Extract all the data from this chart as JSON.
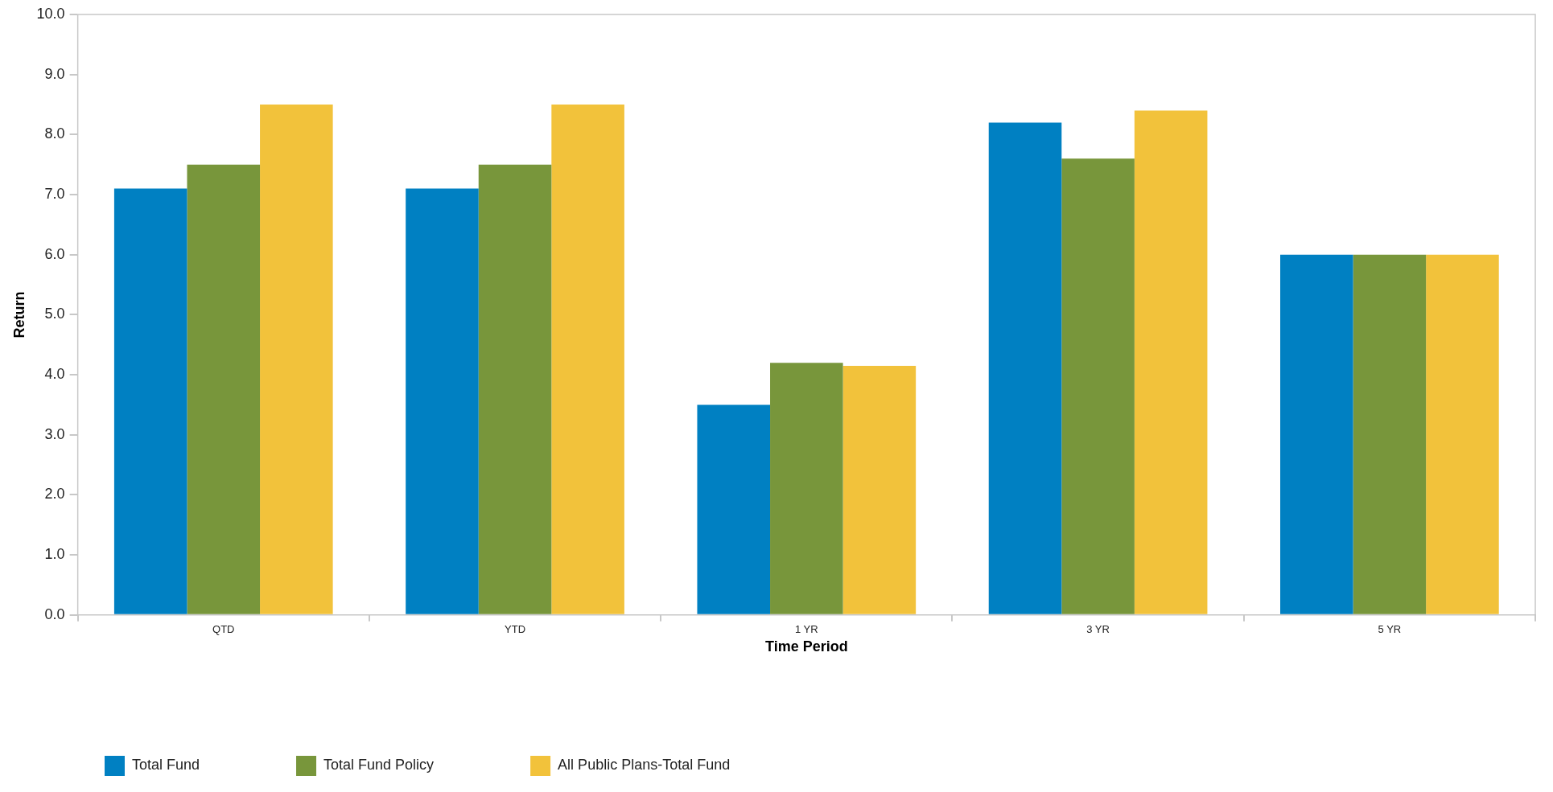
{
  "chart_data": {
    "type": "bar",
    "xlabel": "Time Period",
    "ylabel": "Return",
    "categories": [
      "QTD",
      "YTD",
      "1 YR",
      "3 YR",
      "5 YR"
    ],
    "series": [
      {
        "name": "Total Fund",
        "color": "#0080c2",
        "values": [
          7.1,
          7.1,
          3.5,
          8.2,
          6.0
        ]
      },
      {
        "name": "Total Fund Policy",
        "color": "#78963b",
        "values": [
          7.5,
          7.5,
          4.2,
          7.6,
          6.0
        ]
      },
      {
        "name": "All Public Plans-Total Fund",
        "color": "#f2c23b",
        "values": [
          8.5,
          8.5,
          4.15,
          8.4,
          6.0
        ]
      }
    ],
    "ylim": [
      0,
      10
    ],
    "yticks": [
      {
        "value": 0,
        "label": "0.0"
      },
      {
        "value": 1,
        "label": "1.0"
      },
      {
        "value": 2,
        "label": "2.0"
      },
      {
        "value": 3,
        "label": "3.0"
      },
      {
        "value": 4,
        "label": "4.0"
      },
      {
        "value": 5,
        "label": "5.0"
      },
      {
        "value": 6,
        "label": "6.0"
      },
      {
        "value": 7,
        "label": "7.0"
      },
      {
        "value": 8,
        "label": "8.0"
      },
      {
        "value": 9,
        "label": "9.0"
      },
      {
        "value": 10,
        "label": "10.0"
      }
    ],
    "grid": false,
    "legend": "bottom left"
  }
}
